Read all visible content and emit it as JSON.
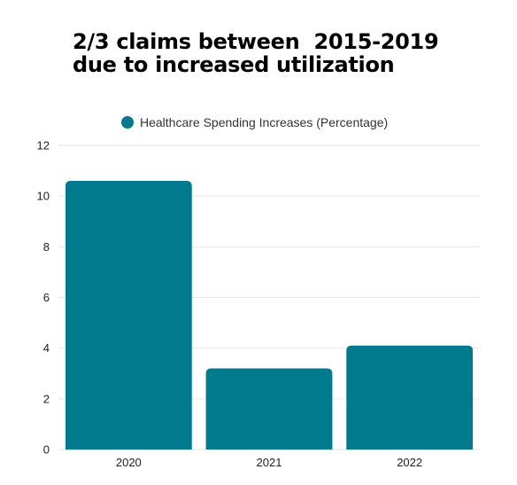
{
  "title_lines": [
    "2/3 claims between  2015-2019",
    "due to increased utilization"
  ],
  "chart_data": {
    "type": "bar",
    "categories": [
      "2020",
      "2021",
      "2022"
    ],
    "series": [
      {
        "name": "Healthcare Spending Increases (Percentage)",
        "values": [
          10.6,
          3.2,
          4.1
        ],
        "color": "#007a8c"
      }
    ],
    "yticks": [
      "0",
      "2",
      "4",
      "6",
      "8",
      "10",
      "12"
    ],
    "ylim": [
      0,
      12
    ],
    "grid": true,
    "legend": "top"
  }
}
